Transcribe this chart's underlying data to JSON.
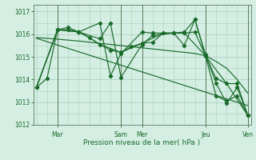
{
  "bg_color": "#d4eee4",
  "grid_color": "#a8ccb8",
  "line_color": "#1a6b2a",
  "vline_color": "#5a7a5a",
  "xlabel": "Pression niveau de la mer( hPa )",
  "ylim": [
    1012,
    1017.3
  ],
  "yticks": [
    1012,
    1013,
    1014,
    1015,
    1016,
    1017
  ],
  "xlim": [
    -0.3,
    20.3
  ],
  "xtick_pos": [
    2,
    8,
    10,
    16,
    20
  ],
  "xtick_labels": [
    "Mar",
    "Sam",
    "Mer",
    "Jeu",
    "Ven"
  ],
  "vlines": [
    2,
    8,
    10,
    16,
    20
  ],
  "line_smooth": {
    "x": [
      0,
      1,
      2,
      3,
      4,
      5,
      6,
      7,
      8,
      9,
      10,
      11,
      12,
      13,
      14,
      15,
      16,
      17,
      18,
      19,
      20
    ],
    "y": [
      1015.85,
      1015.82,
      1015.78,
      1015.74,
      1015.7,
      1015.65,
      1015.6,
      1015.55,
      1015.5,
      1015.45,
      1015.4,
      1015.35,
      1015.3,
      1015.25,
      1015.2,
      1015.15,
      1015.05,
      1014.8,
      1014.5,
      1014.0,
      1013.4
    ]
  },
  "line_diagonal": {
    "x": [
      0,
      20
    ],
    "y": [
      1015.82,
      1012.85
    ]
  },
  "line_zigzag1": {
    "x": [
      0,
      1,
      2,
      3,
      4,
      5,
      6,
      7,
      8,
      9,
      10,
      11,
      12,
      13,
      14,
      15,
      16,
      17,
      18,
      19,
      20
    ],
    "y": [
      1013.65,
      1014.05,
      1016.2,
      1016.2,
      1016.1,
      1015.85,
      1015.55,
      1015.3,
      1015.2,
      1015.45,
      1015.6,
      1015.65,
      1016.05,
      1016.05,
      1016.05,
      1016.1,
      1015.05,
      1014.05,
      1013.82,
      1013.82,
      1012.42
    ]
  },
  "line_zigzag2": {
    "x": [
      0,
      2,
      3,
      4,
      6,
      7,
      8,
      10,
      11,
      13,
      14,
      15,
      16,
      17,
      18,
      19,
      20
    ],
    "y": [
      1013.65,
      1016.2,
      1016.3,
      1016.1,
      1016.5,
      1014.15,
      1015.15,
      1016.1,
      1016.05,
      1016.05,
      1015.5,
      1016.65,
      1015.1,
      1013.85,
      1012.95,
      1013.65,
      1012.42
    ]
  },
  "line_zigzag3": {
    "x": [
      0,
      2,
      4,
      6,
      7,
      8,
      10,
      11,
      14,
      15,
      16,
      17,
      18,
      19,
      20
    ],
    "y": [
      1013.65,
      1016.2,
      1016.1,
      1015.8,
      1016.5,
      1014.1,
      1015.55,
      1015.95,
      1016.1,
      1016.65,
      1015.05,
      1013.28,
      1013.05,
      1013.28,
      1012.42
    ]
  },
  "line_dotted": {
    "x": [
      0,
      2,
      4,
      5,
      6,
      8,
      10,
      12,
      14,
      16,
      18,
      20
    ],
    "y": [
      1013.65,
      1016.2,
      1016.1,
      1015.85,
      1015.55,
      1015.2,
      1015.6,
      1016.05,
      1016.05,
      1015.05,
      1013.82,
      1012.42
    ]
  }
}
